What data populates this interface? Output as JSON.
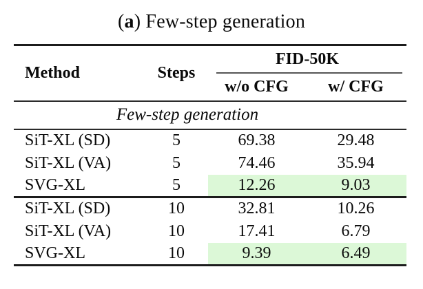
{
  "caption": {
    "open": "(",
    "tag": "a",
    "close": ")",
    "text": " Few-step generation"
  },
  "table": {
    "headers": {
      "method": "Method",
      "steps": "Steps",
      "fid": "FID-50K",
      "wo_cfg": "w/o CFG",
      "w_cfg": "w/ CFG"
    },
    "section_label": "Few-step generation",
    "highlight_color": "#dcf8d7",
    "groups": [
      {
        "rows": [
          {
            "method": "SiT-XL (SD)",
            "steps": "5",
            "wo_cfg": "69.38",
            "w_cfg": "29.48",
            "highlight": false
          },
          {
            "method": "SiT-XL (VA)",
            "steps": "5",
            "wo_cfg": "74.46",
            "w_cfg": "35.94",
            "highlight": false
          },
          {
            "method": "SVG-XL",
            "steps": "5",
            "wo_cfg": "12.26",
            "w_cfg": "9.03",
            "highlight": true
          }
        ]
      },
      {
        "rows": [
          {
            "method": "SiT-XL (SD)",
            "steps": "10",
            "wo_cfg": "32.81",
            "w_cfg": "10.26",
            "highlight": false
          },
          {
            "method": "SiT-XL (VA)",
            "steps": "10",
            "wo_cfg": "17.41",
            "w_cfg": "6.79",
            "highlight": false
          },
          {
            "method": "SVG-XL",
            "steps": "10",
            "wo_cfg": "9.39",
            "w_cfg": "6.49",
            "highlight": true
          }
        ]
      }
    ]
  }
}
